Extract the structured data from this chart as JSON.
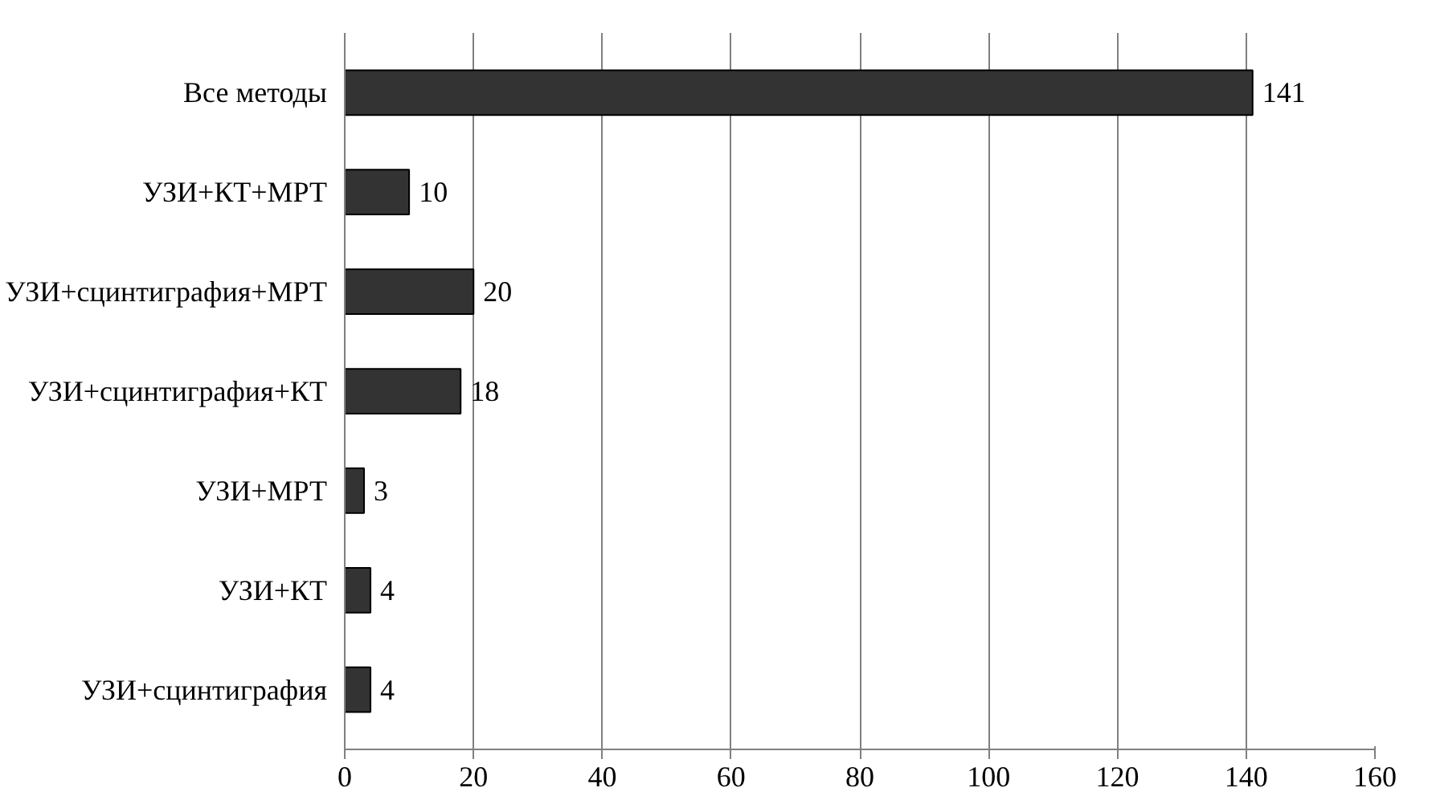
{
  "chart_data": {
    "type": "bar",
    "orientation": "horizontal",
    "categories": [
      "Все методы",
      "УЗИ+КТ+МРТ",
      "УЗИ+сцинтиграфия+МРТ",
      "УЗИ+сцинтиграфия+КТ",
      "УЗИ+МРТ",
      "УЗИ+КТ",
      "УЗИ+сцинтиграфия"
    ],
    "values": [
      141,
      10,
      20,
      18,
      3,
      4,
      4
    ],
    "color": "#333333",
    "xlim": [
      0,
      160
    ],
    "xticks": [
      0,
      20,
      40,
      60,
      80,
      100,
      120,
      140,
      160
    ],
    "grid": "x",
    "data_labels": true
  }
}
